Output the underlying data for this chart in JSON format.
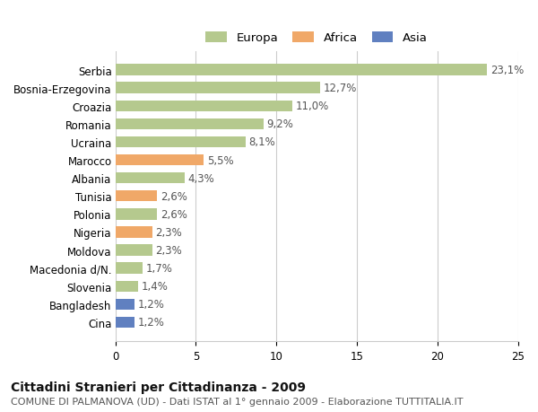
{
  "countries": [
    "Serbia",
    "Bosnia-Erzegovina",
    "Croazia",
    "Romania",
    "Ucraina",
    "Marocco",
    "Albania",
    "Tunisia",
    "Polonia",
    "Nigeria",
    "Moldova",
    "Macedonia d/N.",
    "Slovenia",
    "Bangladesh",
    "Cina"
  ],
  "values": [
    23.1,
    12.7,
    11.0,
    9.2,
    8.1,
    5.5,
    4.3,
    2.6,
    2.6,
    2.3,
    2.3,
    1.7,
    1.4,
    1.2,
    1.2
  ],
  "labels": [
    "23,1%",
    "12,7%",
    "11,0%",
    "9,2%",
    "8,1%",
    "5,5%",
    "4,3%",
    "2,6%",
    "2,6%",
    "2,3%",
    "2,3%",
    "1,7%",
    "1,4%",
    "1,2%",
    "1,2%"
  ],
  "continents": [
    "Europa",
    "Europa",
    "Europa",
    "Europa",
    "Europa",
    "Africa",
    "Europa",
    "Africa",
    "Europa",
    "Africa",
    "Europa",
    "Europa",
    "Europa",
    "Asia",
    "Asia"
  ],
  "colors": {
    "Europa": "#b5c98e",
    "Africa": "#f0a868",
    "Asia": "#6080c0"
  },
  "xlim": [
    0,
    25
  ],
  "xticks": [
    0,
    5,
    10,
    15,
    20,
    25
  ],
  "background_color": "#ffffff",
  "grid_color": "#cccccc",
  "title": "Cittadini Stranieri per Cittadinanza - 2009",
  "subtitle": "COMUNE DI PALMANOVA (UD) - Dati ISTAT al 1° gennaio 2009 - Elaborazione TUTTITALIA.IT",
  "title_fontsize": 10,
  "subtitle_fontsize": 8,
  "label_fontsize": 8.5,
  "tick_fontsize": 8.5,
  "legend_fontsize": 9.5
}
